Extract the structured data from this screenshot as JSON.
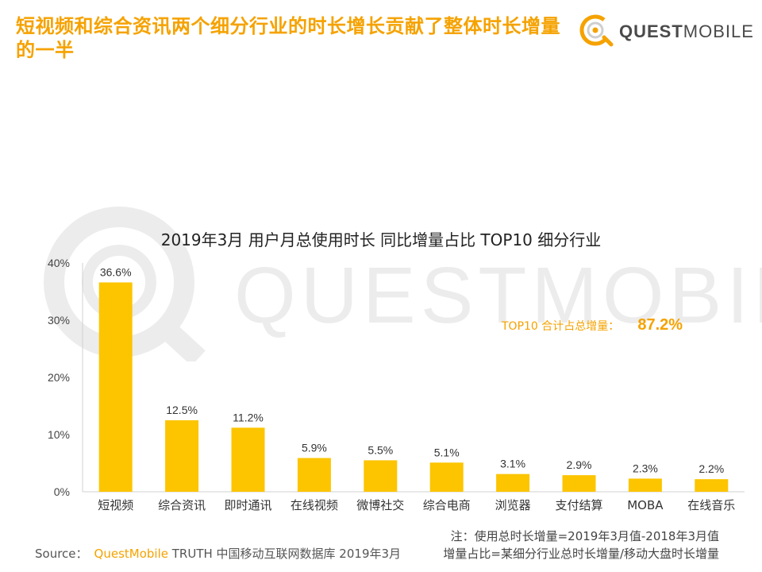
{
  "headline": "短视频和综合资讯两个细分行业的时长增长贡献了整体时长增量的一半",
  "logo": {
    "name_bold": "QUEST",
    "name_light": "MOBILE",
    "watermark": "QUESTMOBILE"
  },
  "summary": {
    "label": "TOP10 合计占总增量：",
    "value": "87.2%"
  },
  "note": {
    "line1": "注：使用总时长增量=2019年3月值-2018年3月值",
    "line2": "增量占比=某细分行业总时长增量/移动大盘时长增量"
  },
  "source": {
    "prefix": "Source：",
    "brand": "QuestMobile",
    "rest": "TRUTH 中国移动互联网数据库 2019年3月"
  },
  "colors": {
    "accent": "#f5a200",
    "bar": "#fcc500"
  },
  "chart_data": {
    "type": "bar",
    "title": "2019年3月 用户月总使用时长 同比增量占比 TOP10 细分行业",
    "categories": [
      "短视频",
      "综合资讯",
      "即时通讯",
      "在线视频",
      "微博社交",
      "综合电商",
      "浏览器",
      "支付结算",
      "MOBA",
      "在线音乐"
    ],
    "values": [
      36.6,
      12.5,
      11.2,
      5.9,
      5.5,
      5.1,
      3.1,
      2.9,
      2.3,
      2.2
    ],
    "value_labels": [
      "36.6%",
      "12.5%",
      "11.2%",
      "5.9%",
      "5.5%",
      "5.1%",
      "3.1%",
      "2.9%",
      "2.3%",
      "2.2%"
    ],
    "yticks": [
      0,
      10,
      20,
      30,
      40
    ],
    "ytick_labels": [
      "0%",
      "10%",
      "20%",
      "30%",
      "40%"
    ],
    "ylim": [
      0,
      40
    ],
    "grid": false,
    "legend": "none"
  }
}
